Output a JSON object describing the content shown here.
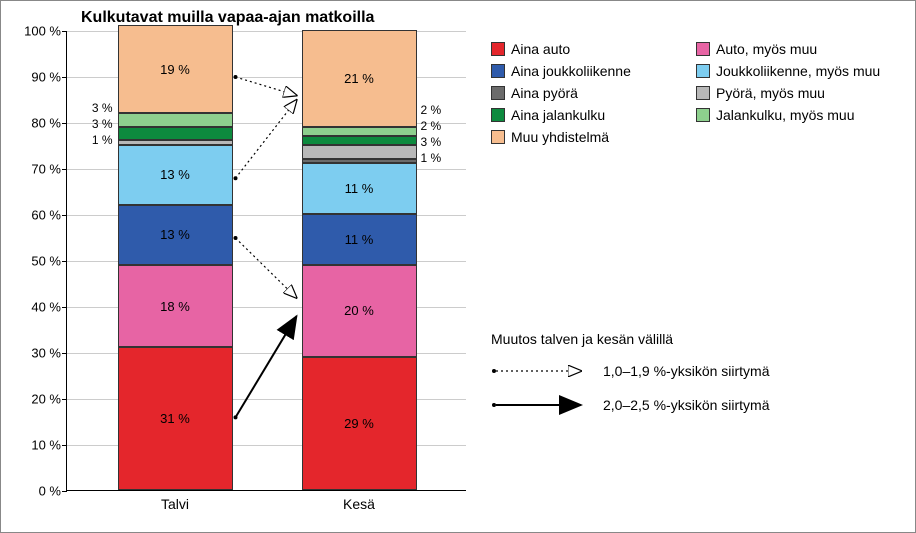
{
  "chart": {
    "title": "Kulkutavat muilla vapaa-ajan matkoilla",
    "type": "stacked-bar-100",
    "categories": [
      "Talvi",
      "Kesä"
    ],
    "y_axis": {
      "min": 0,
      "max": 100,
      "step": 10,
      "format_suffix": " %"
    },
    "series": [
      {
        "key": "aina_auto",
        "name": "Aina auto",
        "color": "#e4262c"
      },
      {
        "key": "auto_myos_muu",
        "name": "Auto, myös muu",
        "color": "#e764a4"
      },
      {
        "key": "aina_joukko",
        "name": "Aina joukkoliikenne",
        "color": "#2f5bab"
      },
      {
        "key": "joukko_myos_muu",
        "name": "Joukkoliikenne, myös muu",
        "color": "#7dcdf0"
      },
      {
        "key": "aina_pyora",
        "name": "Aina pyörä",
        "color": "#6b6b6b"
      },
      {
        "key": "pyora_myos_muu",
        "name": "Pyörä, myös muu",
        "color": "#b8b8b8"
      },
      {
        "key": "aina_jalankulku",
        "name": "Aina jalankulku",
        "color": "#0d8a3e"
      },
      {
        "key": "jalankulku_myos_muu",
        "name": "Jalankulku, myös muu",
        "color": "#8ed08e"
      },
      {
        "key": "muu_yhdistelma",
        "name": "Muu yhdistelmä",
        "color": "#f6bd8f"
      }
    ],
    "data": {
      "Talvi": {
        "aina_auto": 31,
        "auto_myos_muu": 18,
        "aina_joukko": 13,
        "joukko_myos_muu": 13,
        "aina_pyora": 0,
        "pyora_myos_muu": 1,
        "aina_jalankulku": 3,
        "jalankulku_myos_muu": 3,
        "muu_yhdistelma": 19
      },
      "Kesä": {
        "aina_auto": 29,
        "auto_myos_muu": 20,
        "aina_joukko": 11,
        "joukko_myos_muu": 11,
        "aina_pyora": 1,
        "pyora_myos_muu": 3,
        "aina_jalankulku": 2,
        "jalankulku_myos_muu": 2,
        "muu_yhdistelma": 21
      }
    },
    "outside_labels": {
      "Talvi": [
        "pyora_myos_muu",
        "aina_jalankulku",
        "jalankulku_myos_muu"
      ],
      "Kesä": [
        "aina_pyora",
        "pyora_myos_muu",
        "aina_jalankulku",
        "jalankulku_myos_muu"
      ]
    },
    "label_suffix": " %",
    "background_color": "#ffffff",
    "grid_color": "#cccccc",
    "axis_color": "#000000",
    "label_fontsize": 13,
    "title_fontsize": 16
  },
  "arrows": {
    "section_title": "Muutos talven ja kesän välillä",
    "legend": [
      {
        "style": "dotted",
        "label": "1,0–1,9 %-yksikön siirtymä"
      },
      {
        "style": "solid",
        "label": "2,0–2,5 %-yksikön siirtymä"
      }
    ],
    "chart_arrows": [
      {
        "from_cat": "Talvi",
        "from_pct": 16,
        "to_cat": "Kesä",
        "to_pct": 38,
        "style": "solid"
      },
      {
        "from_cat": "Talvi",
        "from_pct": 55,
        "to_cat": "Kesä",
        "to_pct": 42,
        "style": "dotted"
      },
      {
        "from_cat": "Talvi",
        "from_pct": 68,
        "to_cat": "Kesä",
        "to_pct": 85,
        "style": "dotted"
      },
      {
        "from_cat": "Talvi",
        "from_pct": 90,
        "to_cat": "Kesä",
        "to_pct": 86,
        "style": "dotted"
      }
    ]
  }
}
